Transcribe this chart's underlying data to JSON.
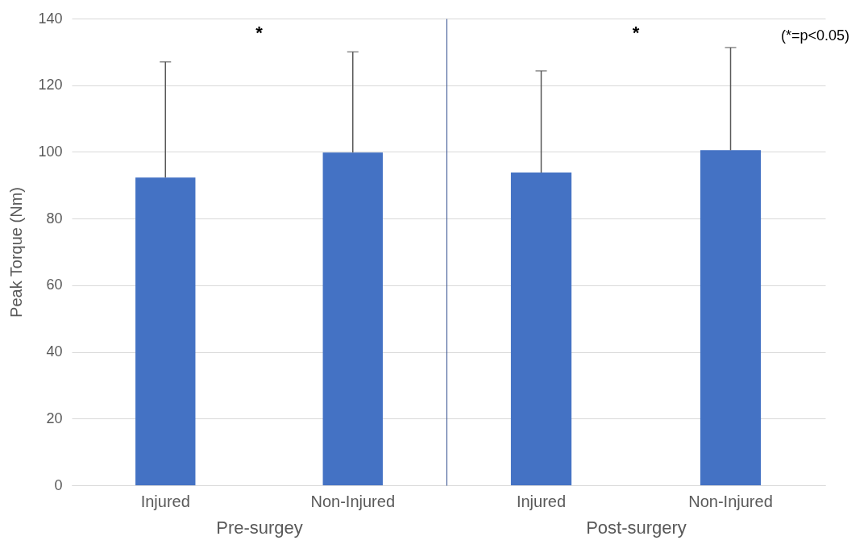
{
  "chart_data": [
    {
      "type": "bar",
      "xlabel": "Pre-surgey",
      "ylabel": "Peak Torque (Nm)",
      "categories": [
        "Injured",
        "Non-Injured"
      ],
      "values": [
        92.3,
        99.8
      ],
      "color": "#4472c4",
      "errors": [
        [
          92.3,
          127
        ],
        [
          99.8,
          130
        ]
      ],
      "ylim": [
        0,
        140
      ],
      "yticks": [
        0,
        20,
        40,
        60,
        80,
        100,
        120,
        140
      ],
      "grid": "y",
      "annotations": [
        "*"
      ]
    },
    {
      "type": "bar",
      "xlabel": "Post-surgery",
      "categories": [
        "Injured",
        "Non-Injured"
      ],
      "values": [
        93.8,
        100.5
      ],
      "color": "#4472c4",
      "errors": [
        [
          93.8,
          124.3
        ],
        [
          100.5,
          131.3
        ]
      ],
      "ylim": [
        0,
        140
      ],
      "yticks": [
        0,
        20,
        40,
        60,
        80,
        100,
        120,
        140
      ],
      "grid": "y",
      "tick_labels": "x",
      "annotations": [
        "*",
        "(*=p<0.05)"
      ]
    }
  ]
}
